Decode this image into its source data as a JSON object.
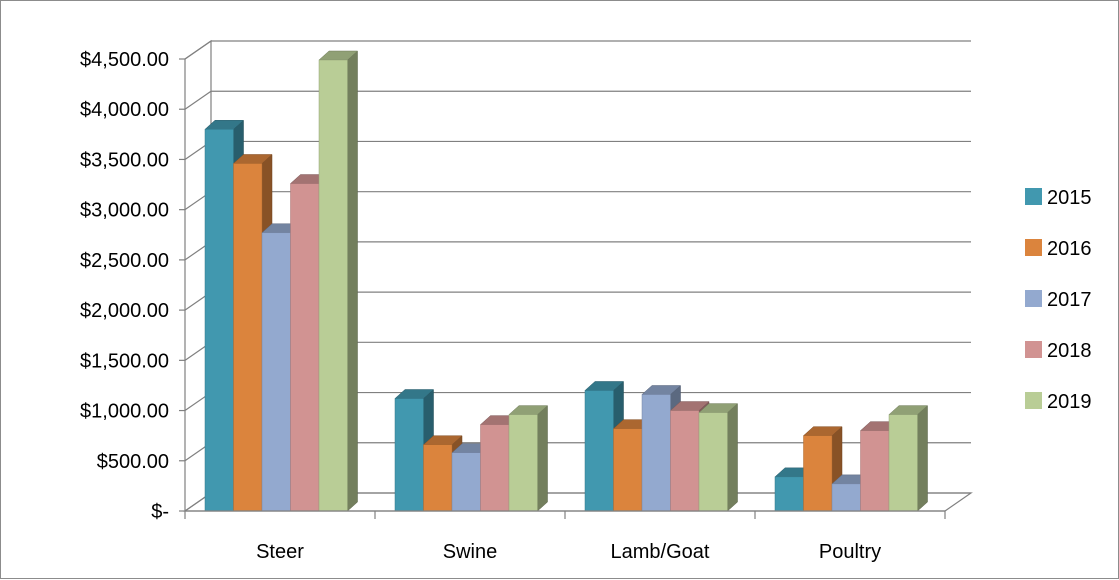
{
  "chart_data": {
    "type": "bar",
    "title": "",
    "xlabel": "",
    "ylabel": "",
    "categories": [
      "Steer",
      "Swine",
      "Lamb/Goat",
      "Poultry"
    ],
    "series": [
      {
        "name": "2015",
        "color": "#4198AF",
        "values": [
          3800,
          1120,
          1200,
          340
        ]
      },
      {
        "name": "2016",
        "color": "#DB843D",
        "values": [
          3460,
          660,
          820,
          750
        ]
      },
      {
        "name": "2017",
        "color": "#93A9CF",
        "values": [
          2770,
          580,
          1160,
          270
        ]
      },
      {
        "name": "2018",
        "color": "#D19392",
        "values": [
          3260,
          860,
          1000,
          800
        ]
      },
      {
        "name": "2019",
        "color": "#B9CD96",
        "values": [
          4490,
          960,
          980,
          960
        ]
      }
    ],
    "ylim": [
      0,
      4500
    ],
    "yticks": [
      0,
      500,
      1000,
      1500,
      2000,
      2500,
      3000,
      3500,
      4000,
      4500
    ],
    "ytick_labels": [
      "$-",
      "$500.00",
      "$1,000.00",
      "$1,500.00",
      "$2,000.00",
      "$2,500.00",
      "$3,000.00",
      "$3,500.00",
      "$4,000.00",
      "$4,500.00"
    ],
    "grid": true,
    "legend_position": "right",
    "style": "3d-clustered-column"
  }
}
